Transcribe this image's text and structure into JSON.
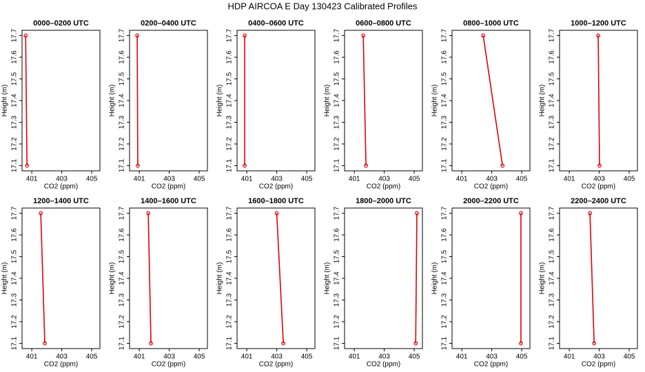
{
  "title": "HDP AIRCOA E  Day 130423  Calibrated Profiles",
  "chart_data": [
    {
      "type": "line",
      "title": "0000–0200 UTC",
      "xlabel": "CO2 (ppm)",
      "ylabel": "Height (m)",
      "color": "#e00000",
      "x": [
        400.59,
        400.68
      ],
      "values": [
        17.7,
        17.1
      ],
      "xlim": [
        400.35,
        405.55
      ],
      "ylim": [
        17.076,
        17.724
      ],
      "xticks": [
        401,
        403,
        405
      ],
      "yticks": [
        17.1,
        17.2,
        17.3,
        17.4,
        17.5,
        17.6,
        17.7
      ]
    },
    {
      "type": "line",
      "title": "0200–0400 UTC",
      "xlabel": "CO2 (ppm)",
      "ylabel": "Height (m)",
      "color": "#e00000",
      "x": [
        400.86,
        400.9
      ],
      "values": [
        17.7,
        17.1
      ],
      "xlim": [
        400.35,
        405.55
      ],
      "ylim": [
        17.076,
        17.724
      ],
      "xticks": [
        401,
        403,
        405
      ],
      "yticks": [
        17.1,
        17.2,
        17.3,
        17.4,
        17.5,
        17.6,
        17.7
      ]
    },
    {
      "type": "line",
      "title": "0400–0600 UTC",
      "xlabel": "CO2 (ppm)",
      "ylabel": "Height (m)",
      "color": "#e00000",
      "x": [
        400.86,
        400.86
      ],
      "values": [
        17.7,
        17.1
      ],
      "xlim": [
        400.35,
        405.55
      ],
      "ylim": [
        17.076,
        17.724
      ],
      "xticks": [
        401,
        403,
        405
      ],
      "yticks": [
        17.1,
        17.2,
        17.3,
        17.4,
        17.5,
        17.6,
        17.7
      ]
    },
    {
      "type": "line",
      "title": "0600–0800 UTC",
      "xlabel": "CO2 (ppm)",
      "ylabel": "Height (m)",
      "color": "#e00000",
      "x": [
        401.6,
        401.78
      ],
      "values": [
        17.7,
        17.1
      ],
      "xlim": [
        400.35,
        405.55
      ],
      "ylim": [
        17.076,
        17.724
      ],
      "xticks": [
        401,
        403,
        405
      ],
      "yticks": [
        17.1,
        17.2,
        17.3,
        17.4,
        17.5,
        17.6,
        17.7
      ]
    },
    {
      "type": "line",
      "title": "0800–1000 UTC",
      "xlabel": "CO2 (ppm)",
      "ylabel": "Height (m)",
      "color": "#e00000",
      "x": [
        402.43,
        403.72
      ],
      "values": [
        17.7,
        17.1
      ],
      "xlim": [
        400.35,
        405.55
      ],
      "ylim": [
        17.076,
        17.724
      ],
      "xticks": [
        401,
        403,
        405
      ],
      "yticks": [
        17.1,
        17.2,
        17.3,
        17.4,
        17.5,
        17.6,
        17.7
      ]
    },
    {
      "type": "line",
      "title": "1000–1200 UTC",
      "xlabel": "CO2 (ppm)",
      "ylabel": "Height (m)",
      "color": "#e00000",
      "x": [
        402.93,
        403.02
      ],
      "values": [
        17.7,
        17.1
      ],
      "xlim": [
        400.35,
        405.55
      ],
      "ylim": [
        17.076,
        17.724
      ],
      "xticks": [
        401,
        403,
        405
      ],
      "yticks": [
        17.1,
        17.2,
        17.3,
        17.4,
        17.5,
        17.6,
        17.7
      ]
    },
    {
      "type": "line",
      "title": "1200–1400 UTC",
      "xlabel": "CO2 (ppm)",
      "ylabel": "Height (m)",
      "color": "#e00000",
      "x": [
        401.6,
        401.87
      ],
      "values": [
        17.7,
        17.1
      ],
      "xlim": [
        400.35,
        405.55
      ],
      "ylim": [
        17.076,
        17.724
      ],
      "xticks": [
        401,
        403,
        405
      ],
      "yticks": [
        17.1,
        17.2,
        17.3,
        17.4,
        17.5,
        17.6,
        17.7
      ]
    },
    {
      "type": "line",
      "title": "1400–1600 UTC",
      "xlabel": "CO2 (ppm)",
      "ylabel": "Height (m)",
      "color": "#e00000",
      "x": [
        401.6,
        401.78
      ],
      "values": [
        17.7,
        17.1
      ],
      "xlim": [
        400.35,
        405.55
      ],
      "ylim": [
        17.076,
        17.724
      ],
      "xticks": [
        401,
        403,
        405
      ],
      "yticks": [
        17.1,
        17.2,
        17.3,
        17.4,
        17.5,
        17.6,
        17.7
      ]
    },
    {
      "type": "line",
      "title": "1600–1800 UTC",
      "xlabel": "CO2 (ppm)",
      "ylabel": "Height (m)",
      "color": "#e00000",
      "x": [
        403.0,
        403.44
      ],
      "values": [
        17.7,
        17.1
      ],
      "xlim": [
        400.35,
        405.55
      ],
      "ylim": [
        17.076,
        17.724
      ],
      "xticks": [
        401,
        403,
        405
      ],
      "yticks": [
        17.1,
        17.2,
        17.3,
        17.4,
        17.5,
        17.6,
        17.7
      ]
    },
    {
      "type": "line",
      "title": "1800–2000 UTC",
      "xlabel": "CO2 (ppm)",
      "ylabel": "Height (m)",
      "color": "#e00000",
      "x": [
        405.18,
        405.1
      ],
      "values": [
        17.7,
        17.1
      ],
      "xlim": [
        400.35,
        405.55
      ],
      "ylim": [
        17.076,
        17.724
      ],
      "xticks": [
        401,
        403,
        405
      ],
      "yticks": [
        17.1,
        17.2,
        17.3,
        17.4,
        17.5,
        17.6,
        17.7
      ]
    },
    {
      "type": "line",
      "title": "2000–2200 UTC",
      "xlabel": "CO2 (ppm)",
      "ylabel": "Height (m)",
      "color": "#e00000",
      "x": [
        404.95,
        404.95
      ],
      "values": [
        17.7,
        17.1
      ],
      "xlim": [
        400.35,
        405.55
      ],
      "ylim": [
        17.076,
        17.724
      ],
      "xticks": [
        401,
        403,
        405
      ],
      "yticks": [
        17.1,
        17.2,
        17.3,
        17.4,
        17.5,
        17.6,
        17.7
      ]
    },
    {
      "type": "line",
      "title": "2200–2400 UTC",
      "xlabel": "CO2 (ppm)",
      "ylabel": "Height (m)",
      "color": "#e00000",
      "x": [
        402.38,
        402.66
      ],
      "values": [
        17.7,
        17.1
      ],
      "xlim": [
        400.35,
        405.55
      ],
      "ylim": [
        17.076,
        17.724
      ],
      "xticks": [
        401,
        403,
        405
      ],
      "yticks": [
        17.1,
        17.2,
        17.3,
        17.4,
        17.5,
        17.6,
        17.7
      ]
    }
  ]
}
